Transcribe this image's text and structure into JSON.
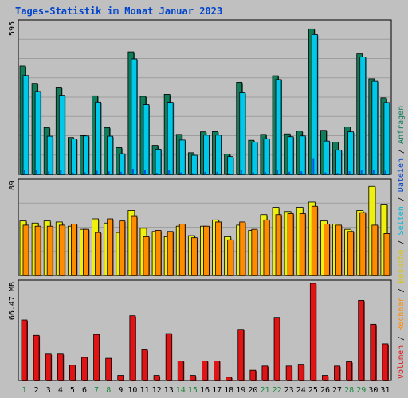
{
  "title": "Tages-Statistik im Monat Januar 2023",
  "colors": {
    "background": "#c0c0c0",
    "plot_bg": "#c0c0c0",
    "grid": "#9e9e9e",
    "title": "#0044cc",
    "anfragen": "#0f7d5c",
    "dateien": "#0055dd",
    "seiten": "#00c8e8",
    "besuche": "#f0f010",
    "rechner": "#ff8c00",
    "volumen": "#e01414",
    "weekday_label": "#000000",
    "weekend_label": "#1a8a3c",
    "separator": "#000000"
  },
  "chart_data": [
    {
      "type": "bar",
      "name": "requests-panel",
      "ymax_label": "595",
      "ylim": [
        0,
        595
      ],
      "grid": true,
      "x": [
        "1",
        "2",
        "3",
        "4",
        "5",
        "6",
        "7",
        "8",
        "9",
        "10",
        "11",
        "12",
        "13",
        "14",
        "15",
        "16",
        "17",
        "18",
        "19",
        "20",
        "21",
        "22",
        "23",
        "24",
        "25",
        "26",
        "27",
        "28",
        "29",
        "30",
        "31"
      ],
      "series": [
        {
          "name": "Anfragen",
          "values": [
            426,
            358,
            184,
            343,
            145,
            152,
            309,
            184,
            105,
            482,
            307,
            114,
            315,
            157,
            85,
            167,
            168,
            80,
            362,
            134,
            157,
            388,
            159,
            170,
            572,
            173,
            127,
            186,
            474,
            376,
            301
          ]
        },
        {
          "name": "Seiten",
          "values": [
            389,
            326,
            150,
            311,
            139,
            151,
            284,
            150,
            81,
            454,
            274,
            99,
            283,
            135,
            75,
            154,
            154,
            70,
            321,
            127,
            140,
            373,
            148,
            151,
            550,
            131,
            95,
            167,
            462,
            366,
            282
          ]
        },
        {
          "name": "Dateien",
          "values": [
            18,
            16,
            11,
            17,
            8,
            8,
            14,
            12,
            10,
            22,
            18,
            6,
            15,
            8,
            5,
            10,
            10,
            5,
            17,
            8,
            9,
            18,
            10,
            12,
            61,
            8,
            6,
            12,
            18,
            17,
            14
          ]
        }
      ]
    },
    {
      "type": "bar",
      "name": "visits-panel",
      "ymax_label": "89",
      "ylim": [
        0,
        89
      ],
      "grid": true,
      "x": [
        "1",
        "2",
        "3",
        "4",
        "5",
        "6",
        "7",
        "8",
        "9",
        "10",
        "11",
        "12",
        "13",
        "14",
        "15",
        "16",
        "17",
        "18",
        "19",
        "20",
        "21",
        "22",
        "23",
        "24",
        "25",
        "26",
        "27",
        "28",
        "29",
        "30",
        "31"
      ],
      "series": [
        {
          "name": "Besuche",
          "values": [
            52,
            50,
            52,
            51,
            47,
            44,
            54,
            50,
            41,
            62,
            45,
            42,
            37,
            47,
            38,
            47,
            53,
            37,
            48,
            43,
            58,
            65,
            61,
            65,
            70,
            52,
            49,
            44,
            62,
            85,
            68
          ]
        },
        {
          "name": "Rechner",
          "values": [
            48,
            47,
            47,
            48,
            49,
            44,
            41,
            54,
            52,
            57,
            37,
            43,
            42,
            49,
            36,
            47,
            51,
            34,
            51,
            44,
            53,
            58,
            59,
            59,
            66,
            49,
            48,
            42,
            60,
            48,
            40
          ]
        }
      ]
    },
    {
      "type": "bar",
      "name": "volume-panel",
      "ymax_label": "66.47 MB",
      "ylim": [
        0,
        66.47
      ],
      "grid": false,
      "x": [
        "1",
        "2",
        "3",
        "4",
        "5",
        "6",
        "7",
        "8",
        "9",
        "10",
        "11",
        "12",
        "13",
        "14",
        "15",
        "16",
        "17",
        "18",
        "19",
        "20",
        "21",
        "22",
        "23",
        "24",
        "25",
        "26",
        "27",
        "28",
        "29",
        "30",
        "31"
      ],
      "series": [
        {
          "name": "Volumen",
          "values": [
            41.4,
            30.9,
            18.1,
            18.1,
            10.5,
            15.8,
            31.5,
            15.2,
            3.5,
            44.3,
            21.0,
            3.5,
            32.1,
            13.4,
            3.5,
            13.4,
            13.4,
            2.3,
            35.0,
            7.0,
            9.9,
            43.2,
            9.9,
            11.1,
            66.5,
            3.5,
            9.9,
            12.8,
            54.8,
            38.5,
            25.1
          ]
        }
      ]
    }
  ],
  "x_labels": [
    {
      "text": "1",
      "weekend": true
    },
    {
      "text": "2",
      "weekend": false
    },
    {
      "text": "3",
      "weekend": false
    },
    {
      "text": "4",
      "weekend": false
    },
    {
      "text": "5",
      "weekend": false
    },
    {
      "text": "6",
      "weekend": false
    },
    {
      "text": "7",
      "weekend": true
    },
    {
      "text": "8",
      "weekend": true
    },
    {
      "text": "9",
      "weekend": false
    },
    {
      "text": "10",
      "weekend": false
    },
    {
      "text": "11",
      "weekend": false
    },
    {
      "text": "12",
      "weekend": false
    },
    {
      "text": "13",
      "weekend": false
    },
    {
      "text": "14",
      "weekend": true
    },
    {
      "text": "15",
      "weekend": true
    },
    {
      "text": "16",
      "weekend": false
    },
    {
      "text": "17",
      "weekend": false
    },
    {
      "text": "18",
      "weekend": false
    },
    {
      "text": "19",
      "weekend": false
    },
    {
      "text": "20",
      "weekend": false
    },
    {
      "text": "21",
      "weekend": true
    },
    {
      "text": "22",
      "weekend": true
    },
    {
      "text": "23",
      "weekend": false
    },
    {
      "text": "24",
      "weekend": false
    },
    {
      "text": "25",
      "weekend": false
    },
    {
      "text": "26",
      "weekend": false
    },
    {
      "text": "27",
      "weekend": false
    },
    {
      "text": "28",
      "weekend": true
    },
    {
      "text": "29",
      "weekend": true
    },
    {
      "text": "30",
      "weekend": false
    },
    {
      "text": "31",
      "weekend": false
    }
  ],
  "right_legend": [
    {
      "text": "Volumen",
      "color": "#e01414"
    },
    {
      "text": " / ",
      "color": "#000000"
    },
    {
      "text": "Rechner",
      "color": "#ff8c00"
    },
    {
      "text": " / ",
      "color": "#000000"
    },
    {
      "text": "Besuche",
      "color": "#d8c800"
    },
    {
      "text": " / ",
      "color": "#000000"
    },
    {
      "text": "Seiten",
      "color": "#00b8d8"
    },
    {
      "text": " / ",
      "color": "#000000"
    },
    {
      "text": "Dateien",
      "color": "#0044cc"
    },
    {
      "text": " / ",
      "color": "#000000"
    },
    {
      "text": "Anfragen",
      "color": "#0f7d5c"
    }
  ]
}
